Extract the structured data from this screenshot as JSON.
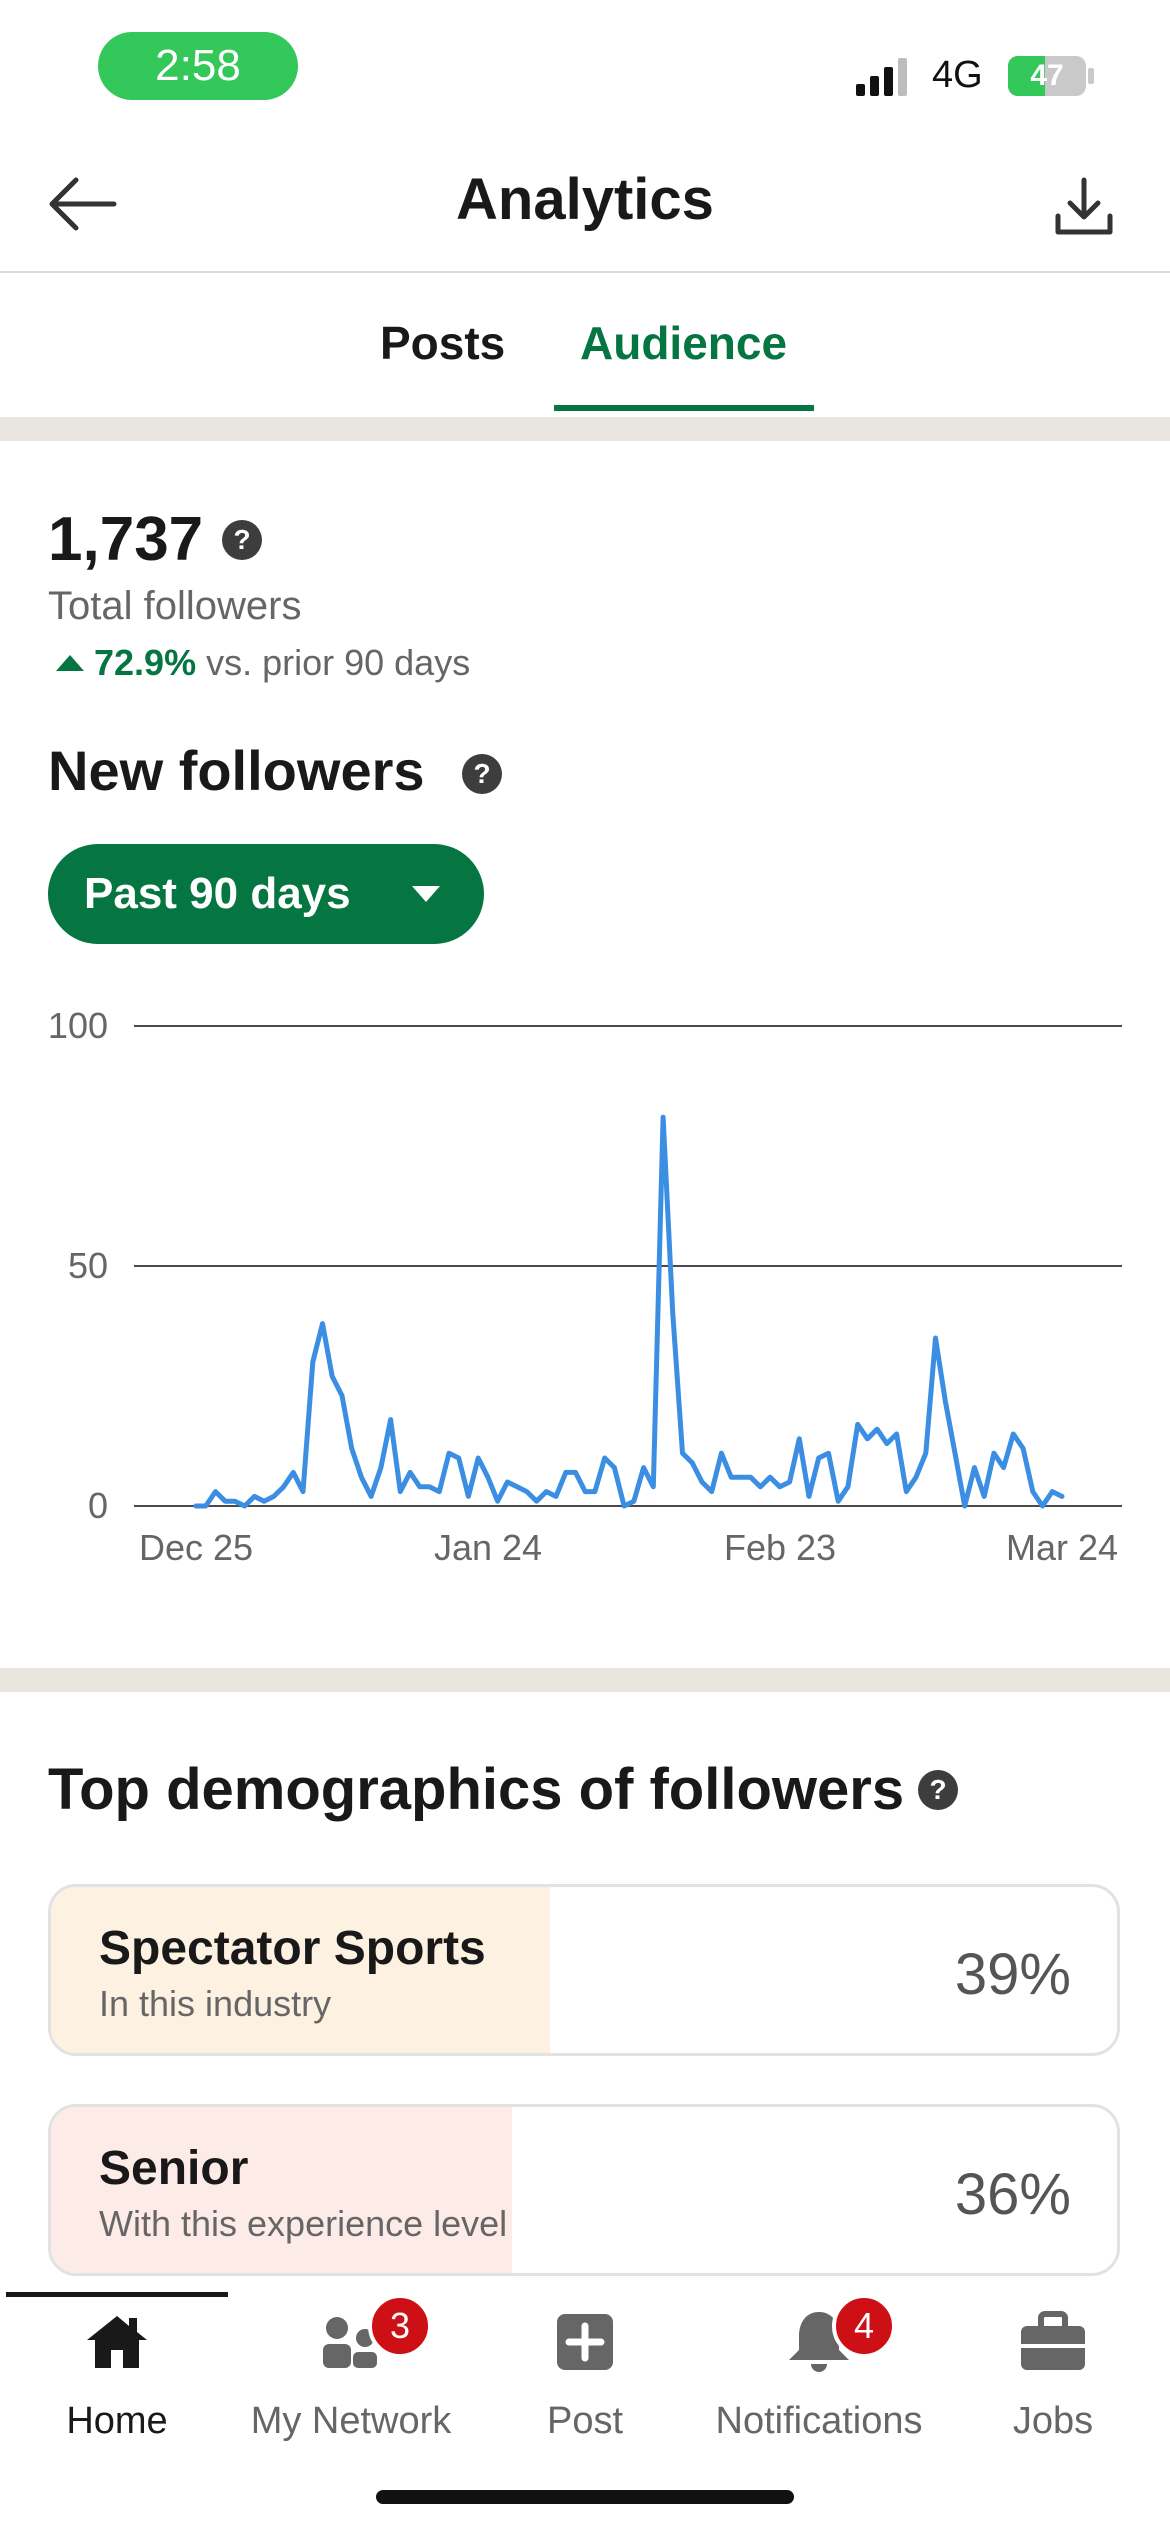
{
  "status": {
    "time": "2:58",
    "network": "4G",
    "battery": "47"
  },
  "header": {
    "title": "Analytics"
  },
  "tabs": [
    {
      "label": "Posts",
      "active": false
    },
    {
      "label": "Audience",
      "active": true
    }
  ],
  "stats": {
    "total": "1,737",
    "total_label": "Total followers",
    "change_value": "72.9%",
    "change_text": "vs. prior 90 days"
  },
  "new_followers": {
    "title": "New followers",
    "range": "Past 90 days"
  },
  "chart_data": {
    "type": "line",
    "title": "New followers",
    "xlabel": "",
    "ylabel": "",
    "ylim": [
      0,
      100
    ],
    "yticks": [
      0,
      50,
      100
    ],
    "x_ticks": [
      "Dec 25",
      "Jan 24",
      "Feb 23",
      "Mar 24"
    ],
    "series": [
      {
        "color": "#3b8ee2",
        "values": [
          0,
          0,
          3,
          1,
          1,
          0,
          2,
          1,
          2,
          4,
          7,
          3,
          30,
          38,
          27,
          23,
          12,
          6,
          2,
          8,
          18,
          3,
          7,
          4,
          4,
          3,
          11,
          10,
          2,
          10,
          6,
          1,
          5,
          4,
          3,
          1,
          3,
          2,
          7,
          7,
          3,
          3,
          10,
          8,
          0,
          1,
          8,
          4,
          81,
          40,
          11,
          9,
          5,
          3,
          11,
          6,
          6,
          6,
          4,
          6,
          4,
          5,
          14,
          2,
          10,
          11,
          1,
          4,
          17,
          14,
          16,
          13,
          15,
          3,
          6,
          11,
          35,
          22,
          11,
          0,
          8,
          2,
          11,
          8,
          15,
          12,
          3,
          0,
          3,
          2
        ]
      }
    ],
    "grid": true,
    "legend": "none"
  },
  "demographics": {
    "title": "Top demographics of followers",
    "items": [
      {
        "name": "Spectator Sports",
        "sub": "In this industry",
        "percent": "39%",
        "fill": 0.39,
        "color": "#fdf1e1"
      },
      {
        "name": "Senior",
        "sub": "With this experience level",
        "percent": "36%",
        "fill": 0.36,
        "color": "#fdebe7"
      }
    ]
  },
  "nav": {
    "items": [
      {
        "label": "Home",
        "icon": "home-icon",
        "active": true
      },
      {
        "label": "My Network",
        "icon": "network-icon",
        "badge": "3"
      },
      {
        "label": "Post",
        "icon": "post-icon"
      },
      {
        "label": "Notifications",
        "icon": "bell-icon",
        "badge": "4"
      },
      {
        "label": "Jobs",
        "icon": "briefcase-icon"
      }
    ]
  },
  "colors": {
    "accent": "#057642",
    "line": "#3b8ee2",
    "badge": "#cc1016"
  }
}
